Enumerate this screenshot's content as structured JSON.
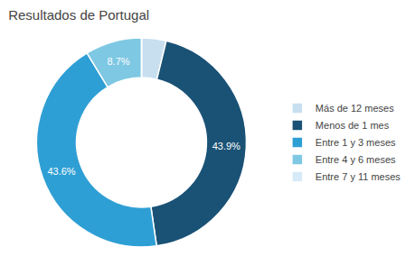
{
  "chart_data": {
    "type": "pie",
    "title": "Resultados de Portugal",
    "categories": [
      "Más de 12 meses",
      "Menos de 1 mes",
      "Entre 1 y 3 meses",
      "Entre 4 y 6 meses",
      "Entre 7 y 11 meses"
    ],
    "values": [
      3.8,
      43.9,
      43.6,
      8.7,
      0.0
    ],
    "colors": [
      "#c8dff0",
      "#1a5276",
      "#2e9fd4",
      "#7ec8e3",
      "#d6eaf8"
    ],
    "value_labels": [
      null,
      "43.9%",
      "43.6%",
      "8.7%",
      null
    ],
    "data_labels": true,
    "legend": "right"
  }
}
